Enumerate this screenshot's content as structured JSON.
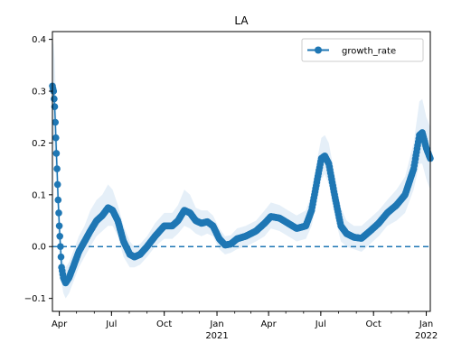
{
  "chart_data": {
    "type": "line",
    "title": "LA",
    "xlabel": "",
    "ylabel": "",
    "xlim": [
      "2020-03-20",
      "2022-01-08"
    ],
    "ylim": [
      -0.125,
      0.415
    ],
    "x_ticks": [
      {
        "date": "2020-04-01",
        "label": "Apr",
        "sub": ""
      },
      {
        "date": "2020-07-01",
        "label": "Jul",
        "sub": ""
      },
      {
        "date": "2020-10-01",
        "label": "Oct",
        "sub": ""
      },
      {
        "date": "2021-01-01",
        "label": "Jan",
        "sub": "2021"
      },
      {
        "date": "2021-04-01",
        "label": "Apr",
        "sub": ""
      },
      {
        "date": "2021-07-01",
        "label": "Jul",
        "sub": ""
      },
      {
        "date": "2021-10-01",
        "label": "Oct",
        "sub": ""
      },
      {
        "date": "2022-01-01",
        "label": "Jan",
        "sub": "2022"
      }
    ],
    "y_ticks": [
      -0.1,
      0.0,
      0.1,
      0.2,
      0.3,
      0.4
    ],
    "y_tick_labels": [
      "−0.1",
      "0.0",
      "0.1",
      "0.2",
      "0.3",
      "0.4"
    ],
    "reference_line": {
      "y": 0.0,
      "style": "dashed",
      "color": "#1f77b4"
    },
    "legend": {
      "position": "upper right",
      "entries": [
        "growth_rate"
      ]
    },
    "grid": false,
    "series": [
      {
        "name": "growth_rate",
        "color": "#1f77b4",
        "marker": "circle",
        "band_color": "#c6dbef",
        "points": [
          {
            "x": "2020-03-20",
            "y": 0.31,
            "lo": 0.2,
            "hi": 0.4
          },
          {
            "x": "2020-03-22",
            "y": 0.3,
            "lo": 0.2,
            "hi": 0.39
          },
          {
            "x": "2020-03-24",
            "y": 0.27,
            "lo": 0.18,
            "hi": 0.36
          },
          {
            "x": "2020-03-26",
            "y": 0.21,
            "lo": 0.13,
            "hi": 0.29
          },
          {
            "x": "2020-03-28",
            "y": 0.15,
            "lo": 0.08,
            "hi": 0.22
          },
          {
            "x": "2020-03-30",
            "y": 0.09,
            "lo": 0.03,
            "hi": 0.15
          },
          {
            "x": "2020-04-01",
            "y": 0.04,
            "lo": -0.01,
            "hi": 0.09
          },
          {
            "x": "2020-04-03",
            "y": 0.0,
            "lo": -0.04,
            "hi": 0.04
          },
          {
            "x": "2020-04-05",
            "y": -0.04,
            "lo": -0.07,
            "hi": 0.0
          },
          {
            "x": "2020-04-08",
            "y": -0.06,
            "lo": -0.09,
            "hi": -0.03
          },
          {
            "x": "2020-04-12",
            "y": -0.07,
            "lo": -0.1,
            "hi": -0.04
          },
          {
            "x": "2020-04-18",
            "y": -0.06,
            "lo": -0.09,
            "hi": -0.03
          },
          {
            "x": "2020-04-25",
            "y": -0.04,
            "lo": -0.07,
            "hi": -0.01
          },
          {
            "x": "2020-05-05",
            "y": -0.01,
            "lo": -0.04,
            "hi": 0.02
          },
          {
            "x": "2020-05-15",
            "y": 0.01,
            "lo": -0.02,
            "hi": 0.04
          },
          {
            "x": "2020-05-25",
            "y": 0.03,
            "lo": 0.0,
            "hi": 0.07
          },
          {
            "x": "2020-06-05",
            "y": 0.05,
            "lo": 0.02,
            "hi": 0.09
          },
          {
            "x": "2020-06-15",
            "y": 0.06,
            "lo": 0.03,
            "hi": 0.1
          },
          {
            "x": "2020-06-25",
            "y": 0.075,
            "lo": 0.04,
            "hi": 0.12
          },
          {
            "x": "2020-07-03",
            "y": 0.07,
            "lo": 0.04,
            "hi": 0.11
          },
          {
            "x": "2020-07-12",
            "y": 0.05,
            "lo": 0.02,
            "hi": 0.08
          },
          {
            "x": "2020-07-22",
            "y": 0.01,
            "lo": -0.02,
            "hi": 0.04
          },
          {
            "x": "2020-08-02",
            "y": -0.015,
            "lo": -0.04,
            "hi": 0.01
          },
          {
            "x": "2020-08-10",
            "y": -0.02,
            "lo": -0.04,
            "hi": 0.0
          },
          {
            "x": "2020-08-20",
            "y": -0.015,
            "lo": -0.035,
            "hi": 0.005
          },
          {
            "x": "2020-09-01",
            "y": 0.0,
            "lo": -0.02,
            "hi": 0.02
          },
          {
            "x": "2020-09-15",
            "y": 0.02,
            "lo": 0.0,
            "hi": 0.045
          },
          {
            "x": "2020-10-01",
            "y": 0.04,
            "lo": 0.015,
            "hi": 0.065
          },
          {
            "x": "2020-10-15",
            "y": 0.04,
            "lo": 0.015,
            "hi": 0.065
          },
          {
            "x": "2020-10-25",
            "y": 0.05,
            "lo": 0.025,
            "hi": 0.08
          },
          {
            "x": "2020-11-05",
            "y": 0.07,
            "lo": 0.04,
            "hi": 0.11
          },
          {
            "x": "2020-11-15",
            "y": 0.065,
            "lo": 0.035,
            "hi": 0.1
          },
          {
            "x": "2020-11-25",
            "y": 0.05,
            "lo": 0.025,
            "hi": 0.075
          },
          {
            "x": "2020-12-05",
            "y": 0.045,
            "lo": 0.02,
            "hi": 0.07
          },
          {
            "x": "2020-12-15",
            "y": 0.048,
            "lo": 0.025,
            "hi": 0.07
          },
          {
            "x": "2020-12-25",
            "y": 0.04,
            "lo": 0.02,
            "hi": 0.06
          },
          {
            "x": "2021-01-05",
            "y": 0.015,
            "lo": -0.005,
            "hi": 0.035
          },
          {
            "x": "2021-01-15",
            "y": 0.003,
            "lo": -0.015,
            "hi": 0.02
          },
          {
            "x": "2021-01-25",
            "y": 0.005,
            "lo": -0.012,
            "hi": 0.022
          },
          {
            "x": "2021-02-05",
            "y": 0.015,
            "lo": -0.005,
            "hi": 0.035
          },
          {
            "x": "2021-02-20",
            "y": 0.02,
            "lo": 0.0,
            "hi": 0.04
          },
          {
            "x": "2021-03-10",
            "y": 0.03,
            "lo": 0.01,
            "hi": 0.05
          },
          {
            "x": "2021-03-25",
            "y": 0.045,
            "lo": 0.02,
            "hi": 0.07
          },
          {
            "x": "2021-04-05",
            "y": 0.058,
            "lo": 0.035,
            "hi": 0.085
          },
          {
            "x": "2021-04-20",
            "y": 0.055,
            "lo": 0.03,
            "hi": 0.08
          },
          {
            "x": "2021-05-05",
            "y": 0.045,
            "lo": 0.02,
            "hi": 0.07
          },
          {
            "x": "2021-05-20",
            "y": 0.035,
            "lo": 0.01,
            "hi": 0.06
          },
          {
            "x": "2021-06-05",
            "y": 0.04,
            "lo": 0.015,
            "hi": 0.07
          },
          {
            "x": "2021-06-15",
            "y": 0.07,
            "lo": 0.04,
            "hi": 0.1
          },
          {
            "x": "2021-06-25",
            "y": 0.13,
            "lo": 0.09,
            "hi": 0.17
          },
          {
            "x": "2021-07-02",
            "y": 0.17,
            "lo": 0.13,
            "hi": 0.21
          },
          {
            "x": "2021-07-08",
            "y": 0.175,
            "lo": 0.14,
            "hi": 0.215
          },
          {
            "x": "2021-07-15",
            "y": 0.16,
            "lo": 0.12,
            "hi": 0.2
          },
          {
            "x": "2021-07-25",
            "y": 0.1,
            "lo": 0.06,
            "hi": 0.14
          },
          {
            "x": "2021-08-05",
            "y": 0.04,
            "lo": 0.01,
            "hi": 0.075
          },
          {
            "x": "2021-08-15",
            "y": 0.025,
            "lo": 0.0,
            "hi": 0.05
          },
          {
            "x": "2021-08-28",
            "y": 0.018,
            "lo": -0.005,
            "hi": 0.04
          },
          {
            "x": "2021-09-10",
            "y": 0.016,
            "lo": -0.01,
            "hi": 0.04
          },
          {
            "x": "2021-09-25",
            "y": 0.03,
            "lo": 0.005,
            "hi": 0.055
          },
          {
            "x": "2021-10-10",
            "y": 0.045,
            "lo": 0.02,
            "hi": 0.07
          },
          {
            "x": "2021-10-25",
            "y": 0.065,
            "lo": 0.04,
            "hi": 0.09
          },
          {
            "x": "2021-11-10",
            "y": 0.08,
            "lo": 0.05,
            "hi": 0.11
          },
          {
            "x": "2021-11-25",
            "y": 0.1,
            "lo": 0.065,
            "hi": 0.135
          },
          {
            "x": "2021-12-10",
            "y": 0.15,
            "lo": 0.11,
            "hi": 0.2
          },
          {
            "x": "2021-12-20",
            "y": 0.215,
            "lo": 0.16,
            "hi": 0.28
          },
          {
            "x": "2021-12-25",
            "y": 0.22,
            "lo": 0.16,
            "hi": 0.285
          },
          {
            "x": "2022-01-01",
            "y": 0.19,
            "lo": 0.13,
            "hi": 0.25
          },
          {
            "x": "2022-01-08",
            "y": 0.17,
            "lo": 0.11,
            "hi": 0.23
          }
        ]
      }
    ]
  }
}
